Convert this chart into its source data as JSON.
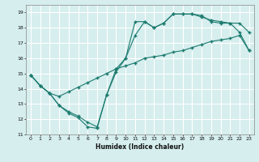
{
  "xlabel": "Humidex (Indice chaleur)",
  "bg_color": "#d6eeee",
  "grid_color": "#ffffff",
  "line_color": "#1a7a6e",
  "marker": "+",
  "xlim": [
    -0.5,
    23.5
  ],
  "ylim": [
    11,
    19.5
  ],
  "xticks": [
    0,
    1,
    2,
    3,
    4,
    5,
    6,
    7,
    8,
    9,
    10,
    11,
    12,
    13,
    14,
    15,
    16,
    17,
    18,
    19,
    20,
    21,
    22,
    23
  ],
  "yticks": [
    11,
    12,
    13,
    14,
    15,
    16,
    17,
    18,
    19
  ],
  "series1_x": [
    0,
    1,
    2,
    3,
    4,
    5,
    6,
    7,
    8,
    9,
    10,
    11,
    12,
    13,
    14,
    15,
    16,
    17,
    18,
    19,
    20,
    21,
    22,
    23
  ],
  "series1_y": [
    14.9,
    14.2,
    13.7,
    12.9,
    12.4,
    12.1,
    11.5,
    11.4,
    13.6,
    15.3,
    16.0,
    18.4,
    18.4,
    18.0,
    18.3,
    18.9,
    18.9,
    18.9,
    18.7,
    18.5,
    18.4,
    18.3,
    18.3,
    17.7
  ],
  "series2_x": [
    0,
    1,
    2,
    3,
    4,
    5,
    6,
    7,
    8,
    9,
    10,
    11,
    12,
    13,
    14,
    15,
    16,
    17,
    18,
    19,
    20,
    21,
    22,
    23
  ],
  "series2_y": [
    14.9,
    14.2,
    13.7,
    12.9,
    12.5,
    12.2,
    11.8,
    11.5,
    13.6,
    15.1,
    16.0,
    17.5,
    18.4,
    18.0,
    18.3,
    18.9,
    18.9,
    18.9,
    18.8,
    18.4,
    18.3,
    18.3,
    17.7,
    16.5
  ],
  "series3_x": [
    0,
    1,
    2,
    3,
    4,
    5,
    6,
    7,
    8,
    9,
    10,
    11,
    12,
    13,
    14,
    15,
    16,
    17,
    18,
    19,
    20,
    21,
    22,
    23
  ],
  "series3_y": [
    14.9,
    14.2,
    13.7,
    13.5,
    13.8,
    14.1,
    14.4,
    14.7,
    15.0,
    15.3,
    15.5,
    15.7,
    16.0,
    16.1,
    16.2,
    16.4,
    16.5,
    16.7,
    16.9,
    17.1,
    17.2,
    17.3,
    17.5,
    16.5
  ]
}
